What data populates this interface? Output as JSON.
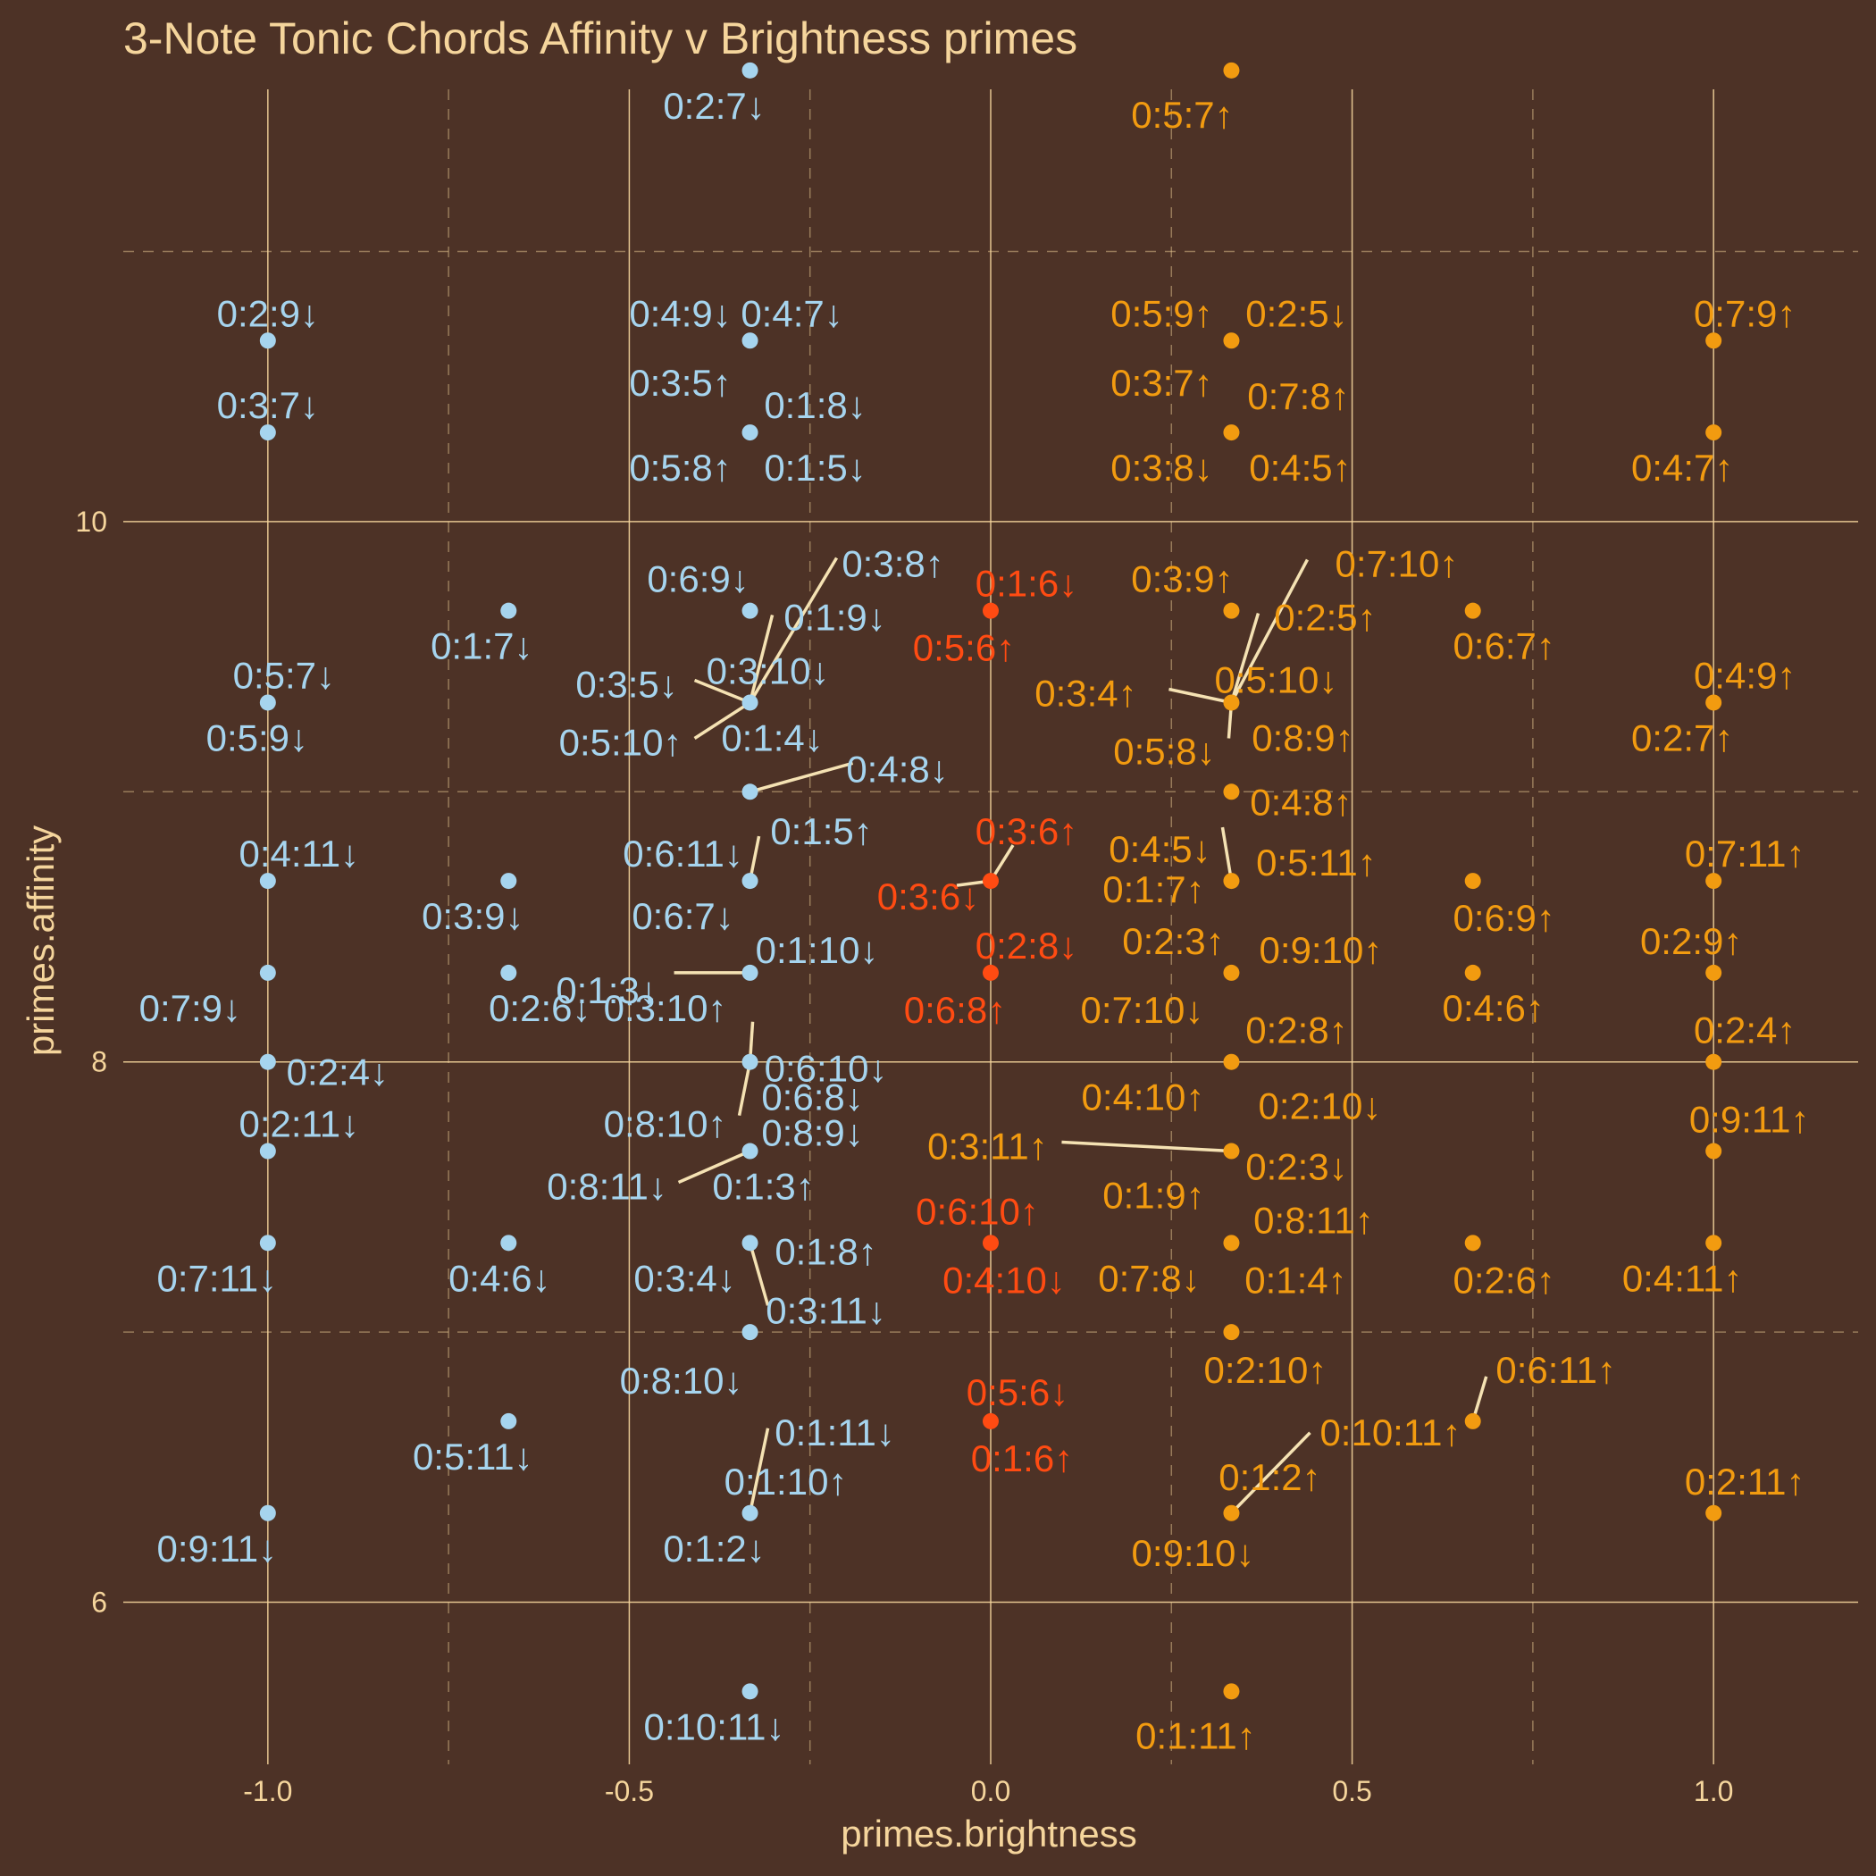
{
  "chart_data": {
    "type": "scatter",
    "title": "3-Note Tonic Chords Affinity v Brightness primes",
    "xlabel": "primes.brightness",
    "ylabel": "primes.affinity",
    "xlim": [
      -1.2,
      1.2
    ],
    "ylim": [
      5.4,
      11.6
    ],
    "xticks": [
      "-1.0",
      "-0.5",
      "0.0",
      "0.5",
      "1.0"
    ],
    "xtick_values": [
      -1.0,
      -0.5,
      0.0,
      0.5,
      1.0
    ],
    "yticks": [
      "6",
      "8",
      "10"
    ],
    "ytick_values": [
      6,
      8,
      10
    ],
    "grid": "major solid, minor dashed",
    "colors": {
      "background": "#4d3226",
      "grid": "#f5d59c",
      "text": "#f5d59c",
      "dark": "#a6d4ee",
      "bright": "#f29b10",
      "neutral": "#ff4b12",
      "leader": "#f5e2b3"
    },
    "series": [
      {
        "color_key": "dark",
        "points": [
          {
            "label": "0:2:9↓",
            "x": -1.0,
            "y": 10.67
          },
          {
            "label": "0:3:7↓",
            "x": -1.0,
            "y": 10.33
          },
          {
            "label": "0:5:7↓",
            "x": -1.0,
            "y": 9.33
          },
          {
            "label": "0:5:9↓",
            "x": -1.0,
            "y": 9.33
          },
          {
            "label": "0:4:11↓",
            "x": -1.0,
            "y": 8.67
          },
          {
            "label": "0:7:9↓",
            "x": -1.0,
            "y": 8.33
          },
          {
            "label": "0:2:4↓",
            "x": -1.0,
            "y": 8.0
          },
          {
            "label": "0:2:11↓",
            "x": -1.0,
            "y": 7.67
          },
          {
            "label": "0:7:11↓",
            "x": -1.0,
            "y": 7.33
          },
          {
            "label": "0:9:11↓",
            "x": -1.0,
            "y": 6.33
          },
          {
            "label": "0:1:7↓",
            "x": -0.667,
            "y": 9.67
          },
          {
            "label": "0:3:9↓",
            "x": -0.667,
            "y": 8.67
          },
          {
            "label": "0:2:6↓",
            "x": -0.667,
            "y": 8.33
          },
          {
            "label": "0:4:6↓",
            "x": -0.667,
            "y": 7.33
          },
          {
            "label": "0:5:11↓",
            "x": -0.667,
            "y": 6.67
          },
          {
            "label": "0:2:7↓",
            "x": -0.333,
            "y": 11.67
          },
          {
            "label": "0:4:9↓",
            "x": -0.333,
            "y": 10.67
          },
          {
            "label": "0:4:7↓",
            "x": -0.333,
            "y": 10.67
          },
          {
            "label": "0:3:5↑",
            "x": -0.333,
            "y": 10.33
          },
          {
            "label": "0:1:8↓",
            "x": -0.333,
            "y": 10.33
          },
          {
            "label": "0:5:8↑",
            "x": -0.333,
            "y": 10.33
          },
          {
            "label": "0:1:5↓",
            "x": -0.333,
            "y": 10.33
          },
          {
            "label": "0:6:9↓",
            "x": -0.333,
            "y": 9.67
          },
          {
            "label": "0:3:8↑",
            "x": -0.333,
            "y": 9.33
          },
          {
            "label": "0:1:9↓",
            "x": -0.333,
            "y": 9.33
          },
          {
            "label": "0:3:5↓",
            "x": -0.333,
            "y": 9.33
          },
          {
            "label": "0:3:10↓",
            "x": -0.333,
            "y": 9.33
          },
          {
            "label": "0:5:10↑",
            "x": -0.333,
            "y": 9.33
          },
          {
            "label": "0:1:4↓",
            "x": -0.333,
            "y": 9.33
          },
          {
            "label": "0:4:8↓",
            "x": -0.333,
            "y": 9.0
          },
          {
            "label": "0:1:5↑",
            "x": -0.333,
            "y": 8.67
          },
          {
            "label": "0:6:11↓",
            "x": -0.333,
            "y": 8.67
          },
          {
            "label": "0:6:7↓",
            "x": -0.333,
            "y": 8.67
          },
          {
            "label": "0:1:10↓",
            "x": -0.333,
            "y": 8.33
          },
          {
            "label": "0:3:10↑",
            "x": -0.333,
            "y": 8.33
          },
          {
            "label": "0:6:8↓",
            "x": -0.333,
            "y": 8.0
          },
          {
            "label": "0:1:3↓",
            "x": -0.333,
            "y": 8.33
          },
          {
            "label": "0:6:10↓",
            "x": -0.333,
            "y": 8.0
          },
          {
            "label": "0:8:10↑",
            "x": -0.333,
            "y": 8.0
          },
          {
            "label": "0:8:9↓",
            "x": -0.333,
            "y": 7.67
          },
          {
            "label": "0:8:11↓",
            "x": -0.333,
            "y": 7.67
          },
          {
            "label": "0:1:3↑",
            "x": -0.333,
            "y": 7.67
          },
          {
            "label": "0:1:8↑",
            "x": -0.333,
            "y": 7.33
          },
          {
            "label": "0:3:4↓",
            "x": -0.333,
            "y": 7.33
          },
          {
            "label": "0:3:11↓",
            "x": -0.333,
            "y": 7.33
          },
          {
            "label": "0:8:10↓",
            "x": -0.333,
            "y": 7.0
          },
          {
            "label": "0:1:11↓",
            "x": -0.333,
            "y": 6.33
          },
          {
            "label": "0:1:10↑",
            "x": -0.333,
            "y": 6.33
          },
          {
            "label": "0:1:2↓",
            "x": -0.333,
            "y": 6.33
          },
          {
            "label": "0:10:11↓",
            "x": -0.333,
            "y": 5.67
          }
        ]
      },
      {
        "color_key": "neutral",
        "points": [
          {
            "label": "0:1:6↓",
            "x": 0.0,
            "y": 9.67
          },
          {
            "label": "0:5:6↑",
            "x": 0.0,
            "y": 9.67
          },
          {
            "label": "0:3:6↑",
            "x": 0.0,
            "y": 8.67
          },
          {
            "label": "0:3:6↓",
            "x": 0.0,
            "y": 8.67
          },
          {
            "label": "0:2:8↓",
            "x": 0.0,
            "y": 8.33
          },
          {
            "label": "0:6:8↑",
            "x": 0.0,
            "y": 8.33
          },
          {
            "label": "0:6:10↑",
            "x": 0.0,
            "y": 7.33
          },
          {
            "label": "0:4:10↓",
            "x": 0.0,
            "y": 7.33
          },
          {
            "label": "0:5:6↓",
            "x": 0.0,
            "y": 6.67
          },
          {
            "label": "0:1:6↑",
            "x": 0.0,
            "y": 6.67
          }
        ]
      },
      {
        "color_key": "bright",
        "points": [
          {
            "label": "0:5:7↑",
            "x": 0.333,
            "y": 11.67
          },
          {
            "label": "0:5:9↑",
            "x": 0.333,
            "y": 10.67
          },
          {
            "label": "0:2:5↓",
            "x": 0.333,
            "y": 10.67
          },
          {
            "label": "0:3:7↑",
            "x": 0.333,
            "y": 10.33
          },
          {
            "label": "0:7:8↑",
            "x": 0.333,
            "y": 10.33
          },
          {
            "label": "0:3:8↓",
            "x": 0.333,
            "y": 10.33
          },
          {
            "label": "0:4:5↑",
            "x": 0.333,
            "y": 10.33
          },
          {
            "label": "0:3:9↑",
            "x": 0.333,
            "y": 9.67
          },
          {
            "label": "0:7:10↑",
            "x": 0.333,
            "y": 9.33
          },
          {
            "label": "0:2:5↑",
            "x": 0.333,
            "y": 9.33
          },
          {
            "label": "0:3:4↑",
            "x": 0.333,
            "y": 9.33
          },
          {
            "label": "0:5:10↓",
            "x": 0.333,
            "y": 9.33
          },
          {
            "label": "0:5:8↓",
            "x": 0.333,
            "y": 9.33
          },
          {
            "label": "0:8:9↑",
            "x": 0.333,
            "y": 9.33
          },
          {
            "label": "0:4:8↑",
            "x": 0.333,
            "y": 9.0
          },
          {
            "label": "0:4:5↓",
            "x": 0.333,
            "y": 8.67
          },
          {
            "label": "0:5:11↑",
            "x": 0.333,
            "y": 8.67
          },
          {
            "label": "0:1:7↑",
            "x": 0.333,
            "y": 8.67
          },
          {
            "label": "0:2:3↑",
            "x": 0.333,
            "y": 8.33
          },
          {
            "label": "0:9:10↑",
            "x": 0.333,
            "y": 8.33
          },
          {
            "label": "0:7:10↓",
            "x": 0.333,
            "y": 8.33
          },
          {
            "label": "0:2:8↑",
            "x": 0.333,
            "y": 8.0
          },
          {
            "label": "0:4:10↑",
            "x": 0.333,
            "y": 8.0
          },
          {
            "label": "0:2:10↓",
            "x": 0.333,
            "y": 8.0
          },
          {
            "label": "0:3:11↑",
            "x": 0.333,
            "y": 7.67
          },
          {
            "label": "0:2:3↓",
            "x": 0.333,
            "y": 7.67
          },
          {
            "label": "0:1:9↑",
            "x": 0.333,
            "y": 7.67
          },
          {
            "label": "0:8:11↑",
            "x": 0.333,
            "y": 7.33
          },
          {
            "label": "0:7:8↓",
            "x": 0.333,
            "y": 7.33
          },
          {
            "label": "0:1:4↑",
            "x": 0.333,
            "y": 7.33
          },
          {
            "label": "0:2:10↑",
            "x": 0.333,
            "y": 7.0
          },
          {
            "label": "0:10:11↑",
            "x": 0.333,
            "y": 6.33
          },
          {
            "label": "0:1:2↑",
            "x": 0.333,
            "y": 6.33
          },
          {
            "label": "0:9:10↓",
            "x": 0.333,
            "y": 6.33
          },
          {
            "label": "0:1:11↑",
            "x": 0.333,
            "y": 5.67
          },
          {
            "label": "0:6:7↑",
            "x": 0.667,
            "y": 9.67
          },
          {
            "label": "0:6:9↑",
            "x": 0.667,
            "y": 8.67
          },
          {
            "label": "0:4:6↑",
            "x": 0.667,
            "y": 8.33
          },
          {
            "label": "0:2:6↑",
            "x": 0.667,
            "y": 7.33
          },
          {
            "label": "0:6:11↑",
            "x": 0.667,
            "y": 6.67
          },
          {
            "label": "0:7:9↑",
            "x": 1.0,
            "y": 10.67
          },
          {
            "label": "0:4:7↑",
            "x": 1.0,
            "y": 10.33
          },
          {
            "label": "0:4:9↑",
            "x": 1.0,
            "y": 9.33
          },
          {
            "label": "0:2:7↑",
            "x": 1.0,
            "y": 9.33
          },
          {
            "label": "0:7:11↑",
            "x": 1.0,
            "y": 8.67
          },
          {
            "label": "0:2:9↑",
            "x": 1.0,
            "y": 8.33
          },
          {
            "label": "0:2:4↑",
            "x": 1.0,
            "y": 8.0
          },
          {
            "label": "0:9:11↑",
            "x": 1.0,
            "y": 7.67
          },
          {
            "label": "0:4:11↑",
            "x": 1.0,
            "y": 7.33
          },
          {
            "label": "0:2:11↑",
            "x": 1.0,
            "y": 6.33
          }
        ]
      }
    ]
  }
}
